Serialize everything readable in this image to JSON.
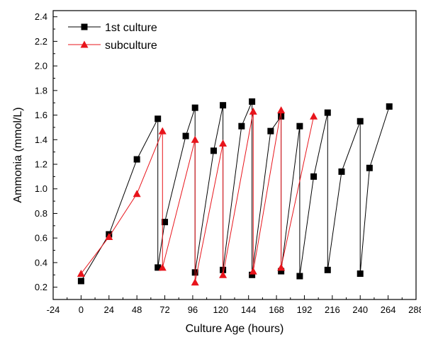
{
  "chart_data": {
    "type": "line",
    "title": "",
    "xlabel": "Culture Age (hours)",
    "ylabel": "Ammonia (mmol/L)",
    "xlim": [
      -24,
      288
    ],
    "ylim": [
      0.1,
      2.45
    ],
    "x_ticks": [
      -24,
      0,
      24,
      48,
      72,
      96,
      120,
      144,
      168,
      192,
      216,
      240,
      264,
      288
    ],
    "y_ticks": [
      0.2,
      0.4,
      0.6,
      0.8,
      1.0,
      1.2,
      1.4,
      1.6,
      1.8,
      2.0,
      2.2,
      2.4
    ],
    "y_tick_labels": [
      "0.2",
      "0.4",
      "0.6",
      "0.8",
      "1.0",
      "1.2",
      "1.4",
      "1.6",
      "1.8",
      "2.0",
      "2.2",
      "2.4"
    ],
    "grid": false,
    "legend_position": "top-left",
    "series": [
      {
        "name": "1st culture",
        "color": "#000000",
        "marker": "square",
        "points": [
          [
            0,
            0.25
          ],
          [
            24,
            0.63
          ],
          [
            48,
            1.24
          ],
          [
            66,
            1.57
          ],
          [
            66,
            0.36
          ],
          [
            72,
            0.73
          ],
          [
            90,
            1.43
          ],
          [
            98,
            1.66
          ],
          [
            98,
            0.32
          ],
          [
            114,
            1.31
          ],
          [
            122,
            1.68
          ],
          [
            122,
            0.34
          ],
          [
            138,
            1.51
          ],
          [
            147,
            1.71
          ],
          [
            147,
            0.3
          ],
          [
            163,
            1.47
          ],
          [
            172,
            1.59
          ],
          [
            172,
            0.33
          ],
          [
            188,
            1.51
          ],
          [
            188,
            0.29
          ],
          [
            200,
            1.1
          ],
          [
            212,
            1.62
          ],
          [
            212,
            0.34
          ],
          [
            224,
            1.14
          ],
          [
            240,
            1.55
          ],
          [
            240,
            0.31
          ],
          [
            248,
            1.17
          ],
          [
            265,
            1.67
          ]
        ]
      },
      {
        "name": "subculture",
        "color": "#e8141b",
        "marker": "triangle",
        "points": [
          [
            0,
            0.31
          ],
          [
            24,
            0.61
          ],
          [
            48,
            0.96
          ],
          [
            70,
            1.47
          ],
          [
            70,
            0.36
          ],
          [
            98,
            1.4
          ],
          [
            98,
            0.24
          ],
          [
            122,
            1.37
          ],
          [
            122,
            0.3
          ],
          [
            148,
            1.63
          ],
          [
            148,
            0.33
          ],
          [
            172,
            1.64
          ],
          [
            172,
            0.36
          ],
          [
            200,
            1.59
          ]
        ]
      }
    ]
  }
}
